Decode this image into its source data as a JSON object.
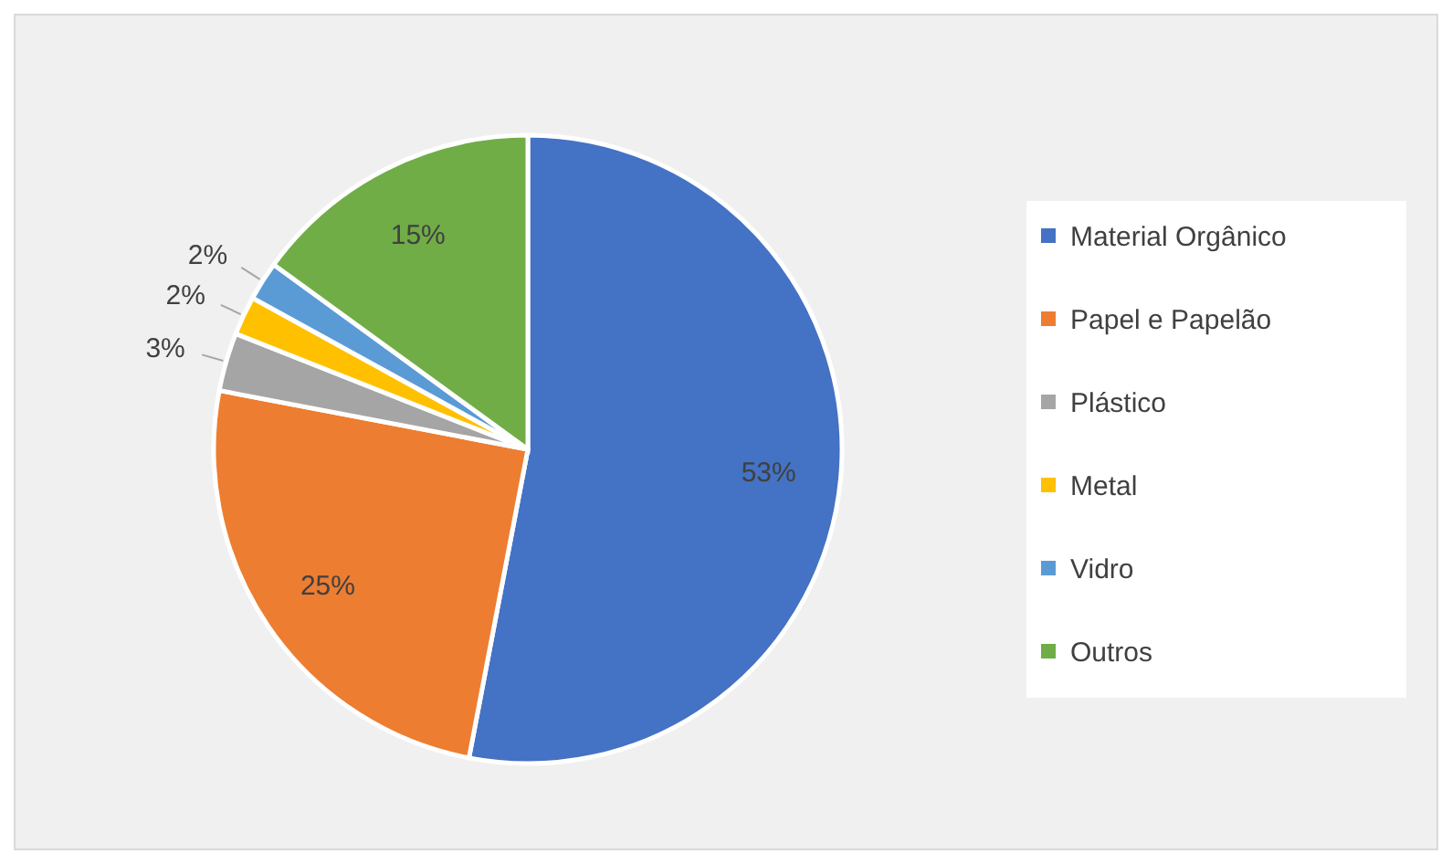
{
  "chart_data": {
    "type": "pie",
    "categories": [
      "Material Orgânico",
      "Papel e Papelão",
      "Plástico",
      "Metal",
      "Vidro",
      "Outros"
    ],
    "values": [
      53,
      25,
      3,
      2,
      2,
      15
    ],
    "colors": [
      "#4472c4",
      "#ed7d31",
      "#a5a5a5",
      "#ffc000",
      "#5b9bd5",
      "#70ad47"
    ],
    "value_labels": [
      "53%",
      "25%",
      "3%",
      "2%",
      "2%",
      "15%"
    ],
    "legend": "right"
  }
}
